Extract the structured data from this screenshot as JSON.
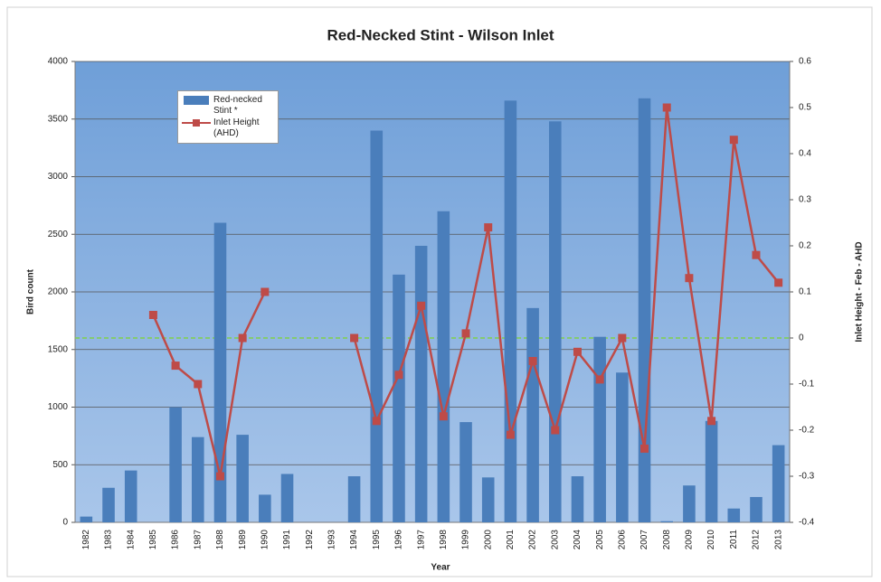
{
  "chart_data": {
    "type": "bar_line",
    "title": "Red-Necked Stint - Wilson Inlet",
    "x_label": "Year",
    "y_label": "Bird count",
    "y2_label": "Inlet Height - Feb - AHD",
    "categories": [
      "1982",
      "1983",
      "1984",
      "1985",
      "1986",
      "1987",
      "1988",
      "1989",
      "1990",
      "1991",
      "1992",
      "1993",
      "1994",
      "1995",
      "1996",
      "1997",
      "1998",
      "1999",
      "2000",
      "2001",
      "2002",
      "2003",
      "2004",
      "2005",
      "2006",
      "2007",
      "2008",
      "2009",
      "2010",
      "2011",
      "2012",
      "2013"
    ],
    "series": [
      {
        "name": "Red-necked Stint *",
        "type": "bar",
        "color": "#4a7ebb",
        "values": [
          50,
          300,
          450,
          0,
          1000,
          740,
          2600,
          760,
          240,
          420,
          0,
          0,
          400,
          3400,
          2150,
          2400,
          2700,
          870,
          390,
          3660,
          1860,
          3480,
          400,
          1610,
          1300,
          3680,
          10,
          320,
          880,
          120,
          220,
          670
        ]
      },
      {
        "name": "Inlet Height (AHD)",
        "type": "line",
        "axis": "y2",
        "color": "#be4b48",
        "values": [
          null,
          null,
          null,
          0.05,
          -0.06,
          -0.1,
          -0.3,
          0.0,
          0.1,
          null,
          null,
          null,
          0.0,
          -0.18,
          -0.08,
          0.07,
          -0.17,
          0.01,
          0.24,
          -0.21,
          -0.05,
          -0.2,
          -0.03,
          -0.09,
          0.0,
          -0.24,
          0.5,
          0.13,
          -0.18,
          0.43,
          0.18,
          0.12
        ]
      }
    ],
    "ylim": [
      0,
      4000
    ],
    "yticks": [
      0,
      500,
      1000,
      1500,
      2000,
      2500,
      3000,
      3500,
      4000
    ],
    "y2lim": [
      -0.4,
      0.6
    ],
    "y2ticks": [
      -0.4,
      -0.3,
      -0.2,
      -0.1,
      0,
      0.1,
      0.2,
      0.3,
      0.4,
      0.5,
      0.6
    ],
    "grid": true,
    "reference_line": {
      "value": 0,
      "axis": "y2",
      "color": "#7fd04a"
    }
  }
}
